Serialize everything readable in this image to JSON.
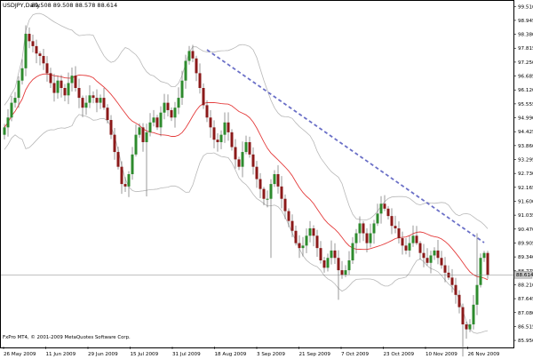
{
  "header": {
    "title": "USDJPY,Daily",
    "ohlc": "89.508 89.508 88.578 88.614"
  },
  "footer": {
    "copyright": "FxPro MT4, © 2001-2009 MetaQuotes Software Corp."
  },
  "last_price": {
    "label": "88.614"
  },
  "colors": {
    "bull_candle": "#2e8b2e",
    "bear_candle": "#8b1a1a",
    "moving_average": "#e43c3c",
    "bollinger_bands": "#b8b8b8",
    "trend_line": "#6a6fc7",
    "grid_line": "#808080"
  },
  "chart_data": {
    "type": "candlestick",
    "symbol": "USDJPY",
    "timeframe": "Daily",
    "ylim": [
      85.7,
      99.7
    ],
    "y_tick_labels": [
      "99.510",
      "98.945",
      "98.380",
      "97.815",
      "97.250",
      "96.685",
      "96.120",
      "95.555",
      "94.990",
      "94.425",
      "93.860",
      "93.295",
      "92.730",
      "92.165",
      "91.600",
      "91.035",
      "90.470",
      "89.905",
      "89.340",
      "88.775",
      "88.210",
      "87.645",
      "87.080",
      "86.515",
      "85.950",
      "85.385"
    ],
    "x_tick_labels": [
      "26 May 2009",
      "11 Jun 2009",
      "29 Jun 2009",
      "15 Jul 2009",
      "31 Jul 2009",
      "18 Aug 2009",
      "3 Sep 2009",
      "21 Sep 2009",
      "7 Oct 2009",
      "23 Oct 2009",
      "10 Nov 2009",
      "26 Nov 2009"
    ],
    "last_price": 88.614,
    "horizontal_line": 88.614,
    "indicators": [
      "moving average",
      "bollinger bands",
      "trend line"
    ],
    "trend_line": {
      "start": [
        57,
        97.75
      ],
      "end": [
        135,
        89.92
      ],
      "style": "dashed"
    },
    "close": [
      94.6,
      95.0,
      95.6,
      95.8,
      96.5,
      97.0,
      98.4,
      98.1,
      97.9,
      97.6,
      97.5,
      97.2,
      96.8,
      96.4,
      96.0,
      96.5,
      96.2,
      95.9,
      96.4,
      96.7,
      96.2,
      95.8,
      95.4,
      95.6,
      95.9,
      95.8,
      95.6,
      95.8,
      95.4,
      94.9,
      94.3,
      93.6,
      93.0,
      92.3,
      92.2,
      92.7,
      93.5,
      94.3,
      94.6,
      94.0,
      94.4,
      94.8,
      95.0,
      94.6,
      95.2,
      95.6,
      95.3,
      95.0,
      95.4,
      95.8,
      96.5,
      97.3,
      97.7,
      97.4,
      96.8,
      96.2,
      95.5,
      95.0,
      94.6,
      94.1,
      94.0,
      94.3,
      94.8,
      94.4,
      93.8,
      93.3,
      93.0,
      93.6,
      94.0,
      93.5,
      93.0,
      92.5,
      92.1,
      91.7,
      91.7,
      92.3,
      92.7,
      92.2,
      91.7,
      91.2,
      90.8,
      90.4,
      89.9,
      89.7,
      89.8,
      90.2,
      90.5,
      90.2,
      89.7,
      89.2,
      88.9,
      89.3,
      89.6,
      89.3,
      88.8,
      88.6,
      88.8,
      89.2,
      89.9,
      90.3,
      90.7,
      90.3,
      89.9,
      90.3,
      90.7,
      91.1,
      91.5,
      91.3,
      91.0,
      90.6,
      90.5,
      90.1,
      89.8,
      89.6,
      89.9,
      90.2,
      89.9,
      89.5,
      89.3,
      89.1,
      89.4,
      89.6,
      89.3,
      89.0,
      88.7,
      88.5,
      88.2,
      87.8,
      87.3,
      86.6,
      86.4,
      86.6,
      87.4,
      88.2,
      89.3,
      89.5,
      88.6
    ]
  }
}
